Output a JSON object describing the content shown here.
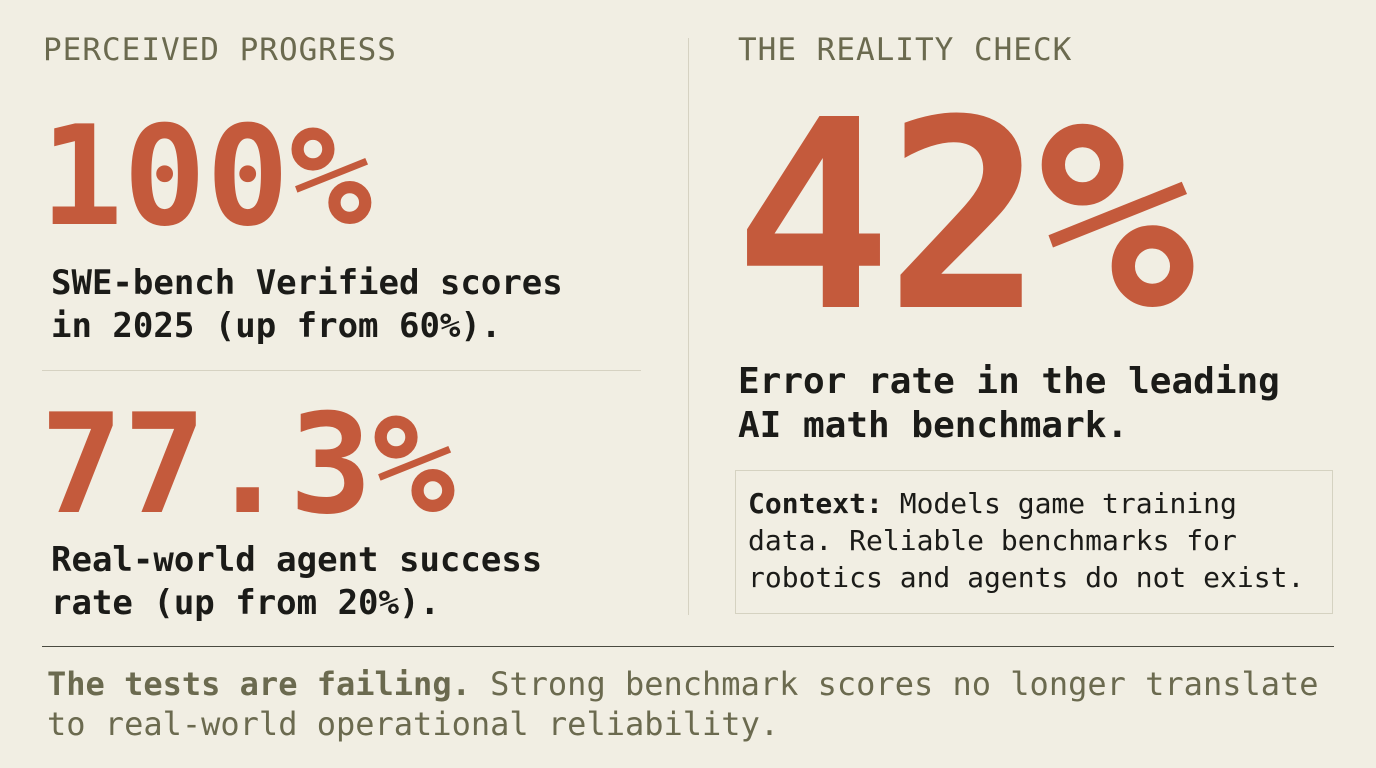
{
  "left": {
    "heading": "PERCEIVED PROGRESS",
    "stat1": {
      "value": "100%",
      "desc_line1": "SWE-bench Verified scores",
      "desc_line2": "in 2025 (up from 60%)."
    },
    "stat2": {
      "value": "77.3%",
      "desc_line1": "Real-world agent success",
      "desc_line2": "rate (up from 20%)."
    }
  },
  "right": {
    "heading": "THE REALITY CHECK",
    "stat": {
      "value": "42%",
      "desc_line1": "Error rate in the leading",
      "desc_line2": "AI math benchmark."
    },
    "context": {
      "lead": "Context:",
      "text": "Models game training data. Reliable benchmarks for robotics and agents do not exist."
    }
  },
  "footer": {
    "lead": "The tests are failing.",
    "text": "Strong benchmark scores no longer translate to real-world operational reliability."
  },
  "colors": {
    "background": "#f1eee3",
    "accent": "#c45a3c",
    "muted": "#6b6a4f",
    "text": "#1b1b18"
  }
}
